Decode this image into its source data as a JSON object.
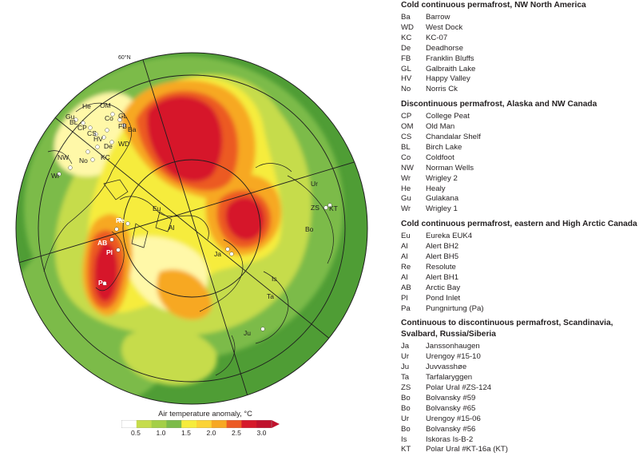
{
  "map": {
    "site_labels": [
      "Ba",
      "WD",
      "KC",
      "De",
      "FB",
      "GL",
      "HV",
      "No",
      "CP",
      "OM",
      "CS",
      "BL",
      "Co",
      "NW",
      "Wr",
      "He",
      "Gu",
      "Eu",
      "Al",
      "Re",
      "AB",
      "Pl",
      "Pa",
      "Ja",
      "Ur",
      "ZS",
      "KT",
      "Bo",
      "Is",
      "Ta",
      "Ju"
    ],
    "latitude_label": "60°N",
    "colors": {
      "green_dark": "#4f9d35",
      "green": "#7cbb4a",
      "yellow_green": "#c6dc4c",
      "yellow": "#f6ec3c",
      "light_yellow": "#fff8a8",
      "orange": "#f7a823",
      "red_orange": "#ec5a24",
      "red": "#d6192a",
      "land_white": "#ffffff",
      "ocean_blue": "#bfe4f5"
    }
  },
  "colorbar": {
    "title": "Air temperature anomaly, °C",
    "ticks": [
      "0.5",
      "1.0",
      "1.5",
      "2.0",
      "2.5",
      "3.0"
    ],
    "colors": [
      "#ffffff",
      "#c6dc4c",
      "#a4cf47",
      "#7cbb4a",
      "#f6ec3c",
      "#fbd336",
      "#f7a823",
      "#ec5a24",
      "#d6192a",
      "#c0112c"
    ]
  },
  "legend": {
    "sections": [
      {
        "title": "Cold continuous permafrost, NW North America",
        "items": [
          {
            "code": "Ba",
            "name": "Barrow"
          },
          {
            "code": "WD",
            "name": "West Dock"
          },
          {
            "code": "KC",
            "name": "KC-07"
          },
          {
            "code": "De",
            "name": "Deadhorse"
          },
          {
            "code": "FB",
            "name": "Franklin Bluffs"
          },
          {
            "code": "GL",
            "name": "Galbraith Lake"
          },
          {
            "code": "HV",
            "name": "Happy Valley"
          },
          {
            "code": "No",
            "name": "Norris Ck"
          }
        ]
      },
      {
        "title": "Discontinuous permafrost, Alaska and NW Canada",
        "items": [
          {
            "code": "CP",
            "name": "College Peat"
          },
          {
            "code": "OM",
            "name": "Old Man"
          },
          {
            "code": "CS",
            "name": "Chandalar Shelf"
          },
          {
            "code": "BL",
            "name": "Birch Lake"
          },
          {
            "code": "Co",
            "name": "Coldfoot"
          },
          {
            "code": "NW",
            "name": "Norman Wells"
          },
          {
            "code": "Wr",
            "name": "Wrigley 2"
          },
          {
            "code": "He",
            "name": "Healy"
          },
          {
            "code": "Gu",
            "name": "Gulakana"
          },
          {
            "code": "Wr",
            "name": "Wrigley 1"
          }
        ]
      },
      {
        "title": "Cold continuous permafrost, eastern and High Arctic Canada",
        "items": [
          {
            "code": "Eu",
            "name": "Eureka EUK4"
          },
          {
            "code": "Al",
            "name": "Alert BH2"
          },
          {
            "code": "Al",
            "name": "Alert BH5"
          },
          {
            "code": "Re",
            "name": "Resolute"
          },
          {
            "code": "Al",
            "name": "Alert BH1"
          },
          {
            "code": "AB",
            "name": "Arctic Bay"
          },
          {
            "code": "Pl",
            "name": "Pond Inlet"
          },
          {
            "code": "Pa",
            "name": "Pungnirtung (Pa)"
          }
        ]
      },
      {
        "title": "Continuous to discontinuous permafrost, Scandinavia,",
        "title2": "Svalbard, Russia/Siberia",
        "items": [
          {
            "code": "Ja",
            "name": "Janssonhaugen"
          },
          {
            "code": "Ur",
            "name": "Urengoy #15-10"
          },
          {
            "code": "Ju",
            "name": "Juvvasshøe"
          },
          {
            "code": "Ta",
            "name": "Tarfalaryggen"
          },
          {
            "code": "ZS",
            "name": "Polar Ural #ZS-124"
          },
          {
            "code": "Bo",
            "name": "Bolvansky #59"
          },
          {
            "code": "Bo",
            "name": "Bolvansky #65"
          },
          {
            "code": "Ur",
            "name": "Urengoy #15-06"
          },
          {
            "code": "Bo",
            "name": "Bolvansky #56"
          },
          {
            "code": "Is",
            "name": "Iskoras Is-B-2"
          },
          {
            "code": "KT",
            "name": "Polar Ural #KT-16a (KT)"
          }
        ]
      }
    ]
  }
}
